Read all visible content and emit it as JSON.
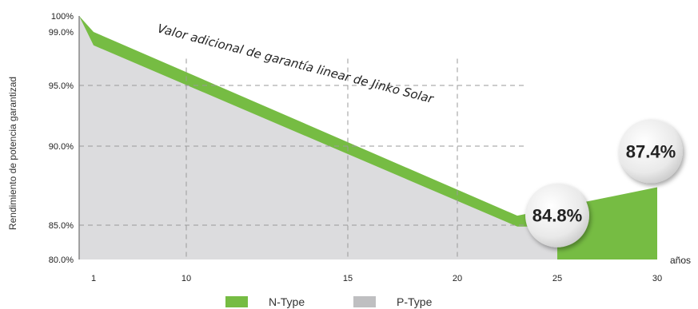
{
  "chart_data": {
    "type": "area",
    "ylabel": "Rendimiento de potencia garantizad",
    "xlabel": "años",
    "annotation": "Valor adicional de garantía linear de Jinko Solar",
    "x_ticks": [
      1,
      10,
      15,
      20,
      25,
      30
    ],
    "y_ticks": [
      {
        "value": 100,
        "label": "100%"
      },
      {
        "value": 99,
        "label": "99.0%"
      },
      {
        "value": 95,
        "label": "95.0%"
      },
      {
        "value": 90,
        "label": "90.0%"
      },
      {
        "value": 85,
        "label": "85.0%"
      },
      {
        "value": 80,
        "label": "80.0%"
      }
    ],
    "ylim": [
      80,
      100
    ],
    "xlim": [
      0.5,
      30.5
    ],
    "grid": true,
    "series": [
      {
        "name": "N-Type",
        "color": "#76bc43",
        "points": [
          [
            0.5,
            100
          ],
          [
            1,
            99
          ],
          [
            23,
            85.6
          ],
          [
            30,
            87.4
          ]
        ],
        "end_x": 30
      },
      {
        "name": "P-Type",
        "color": "#dcdcde",
        "points": [
          [
            0.5,
            100
          ],
          [
            1,
            98
          ],
          [
            23,
            84.8
          ]
        ],
        "end_x": 25
      }
    ],
    "callouts": [
      {
        "label": "84.8%",
        "x": 25,
        "y": 84.8
      },
      {
        "label": "87.4%",
        "x": 30,
        "y": 87.4
      }
    ],
    "legend": [
      {
        "label": "N-Type",
        "color": "#76bc43"
      },
      {
        "label": "P-Type",
        "color": "#bfbfc1"
      }
    ],
    "legend_position": "bottom"
  }
}
